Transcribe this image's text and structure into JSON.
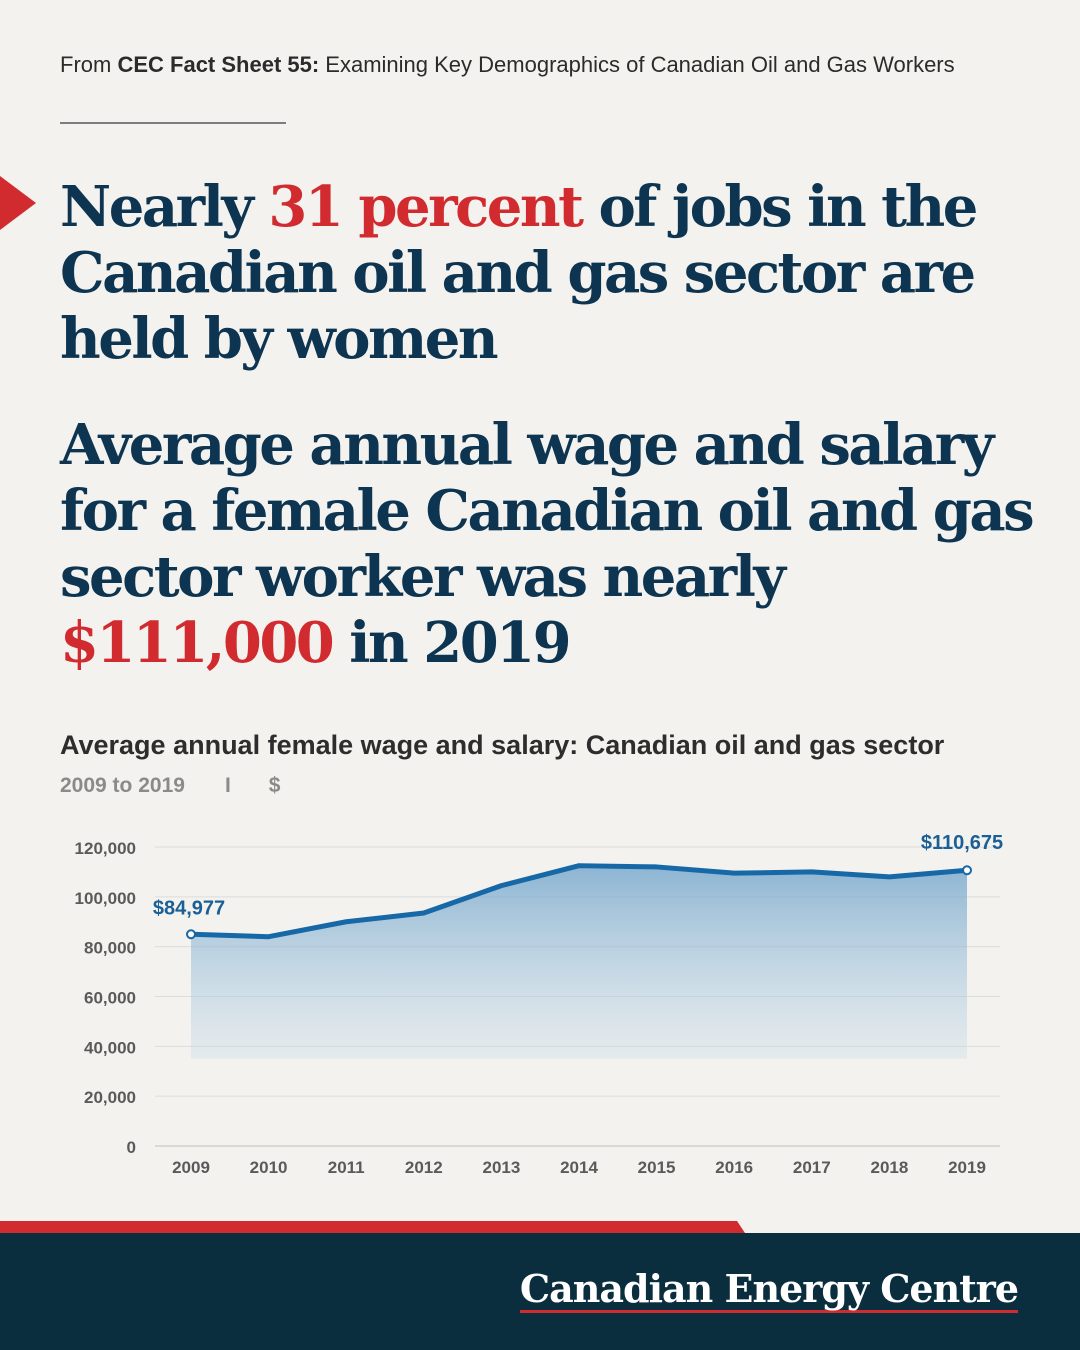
{
  "source": {
    "prefix": "From ",
    "bold": "CEC Fact Sheet 55:",
    "rest": " Examining Key Demographics of Canadian Oil and Gas Workers"
  },
  "headline1": {
    "before": "Nearly ",
    "highlight": "31 percent",
    "after": " of jobs in the Canadian oil and gas sector are held by women"
  },
  "headline2": {
    "before": "Average annual wage and salary for a female Canadian oil and gas sector worker was nearly ",
    "highlight": "$111,000",
    "after": " in 2019"
  },
  "chart_title": "Average annual female wage and salary: Canadian oil and gas sector",
  "chart_subtitle": {
    "range": "2009 to 2019",
    "separator": "I",
    "unit": "$"
  },
  "brand": "Canadian Energy Centre",
  "colors": {
    "navy": "#0d3450",
    "accent_red": "#d12b30",
    "line_blue": "#1668a6",
    "label_blue": "#1a5f96",
    "footer_bg": "#0b2e3e"
  },
  "chart_data": {
    "type": "area",
    "x": [
      "2009",
      "2010",
      "2011",
      "2012",
      "2013",
      "2014",
      "2015",
      "2016",
      "2017",
      "2018",
      "2019"
    ],
    "series": [
      {
        "values": [
          84977,
          84000,
          90000,
          93500,
          104500,
          112500,
          112000,
          109500,
          110000,
          108000,
          110675
        ]
      }
    ],
    "ylim": [
      0,
      120000
    ],
    "yticks": [
      0,
      20000,
      40000,
      60000,
      80000,
      100000,
      120000
    ],
    "ytick_labels": [
      "0",
      "20,000",
      "40,000",
      "60,000",
      "80,000",
      "100,000",
      "120,000"
    ],
    "annotations": [
      {
        "x": "2009",
        "label": "$84,977"
      },
      {
        "x": "2019",
        "label": "$110,675"
      }
    ],
    "grid": true,
    "legend": "none"
  }
}
